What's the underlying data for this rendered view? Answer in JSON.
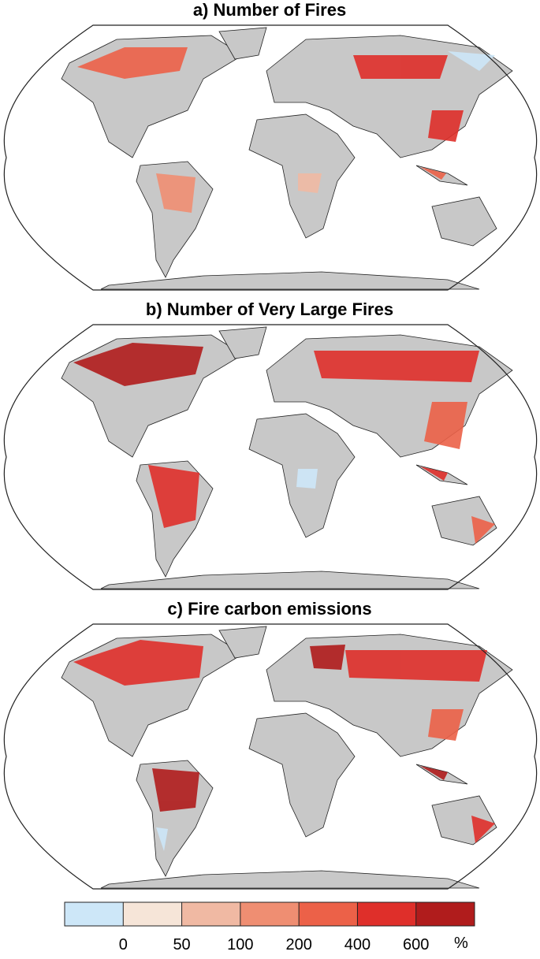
{
  "panels": [
    {
      "title": "a) Number of Fires"
    },
    {
      "title": "b) Number of Very Large Fires"
    },
    {
      "title": "c) Fire carbon emissions"
    }
  ],
  "colorbar": {
    "colors": [
      "#cde7f8",
      "#f6e5d8",
      "#f0b9a3",
      "#ef8e72",
      "#ec6148",
      "#df2f2a",
      "#b01c1c"
    ],
    "ticks": [
      0,
      50,
      100,
      200,
      400,
      600
    ],
    "unit": "%"
  }
}
